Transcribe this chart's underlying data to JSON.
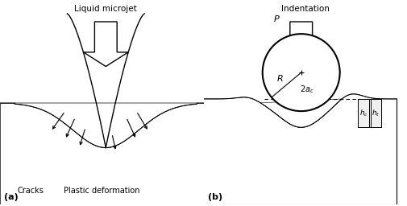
{
  "title_a": "Liquid microjet",
  "title_b": "Indentation",
  "label_a": "(a)",
  "label_b": "(b)",
  "label_cracks": "Cracks",
  "label_plastic": "Plastic deformation",
  "label_P": "P",
  "label_R": "R",
  "label_2ac": "2a$_c$",
  "label_hc": "h$_c$",
  "label_ht": "h$_t$",
  "bg_color": "#ffffff",
  "figsize": [
    5.05,
    2.56
  ],
  "dpi": 100
}
